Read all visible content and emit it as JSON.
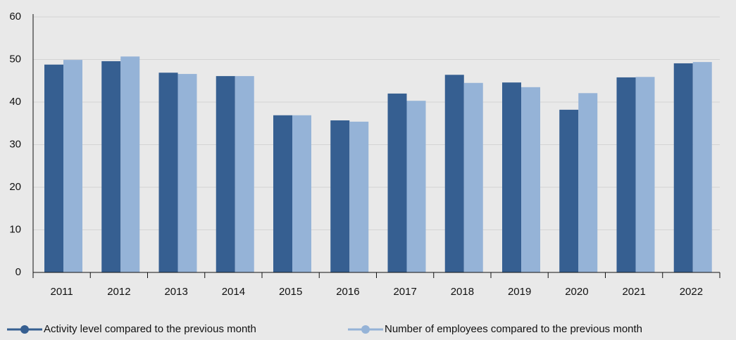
{
  "chart_data": {
    "type": "bar",
    "categories": [
      "2011",
      "2012",
      "2013",
      "2014",
      "2015",
      "2016",
      "2017",
      "2018",
      "2019",
      "2020",
      "2021",
      "2022"
    ],
    "series": [
      {
        "name": "Activity level compared to the previous month",
        "color": "#365f91",
        "values": [
          48.8,
          49.6,
          46.9,
          46.1,
          36.9,
          35.7,
          42.0,
          46.4,
          44.6,
          38.2,
          45.8,
          49.1
        ]
      },
      {
        "name": "Number of employees compared to the previous month",
        "color": "#95b3d7",
        "values": [
          49.9,
          50.7,
          46.6,
          46.1,
          36.9,
          35.4,
          40.3,
          44.5,
          43.5,
          42.1,
          45.9,
          49.4
        ]
      }
    ],
    "ylim": [
      0,
      60
    ],
    "yticks": [
      0,
      10,
      20,
      30,
      40,
      50,
      60
    ],
    "grid": true,
    "legend": "bottom"
  }
}
